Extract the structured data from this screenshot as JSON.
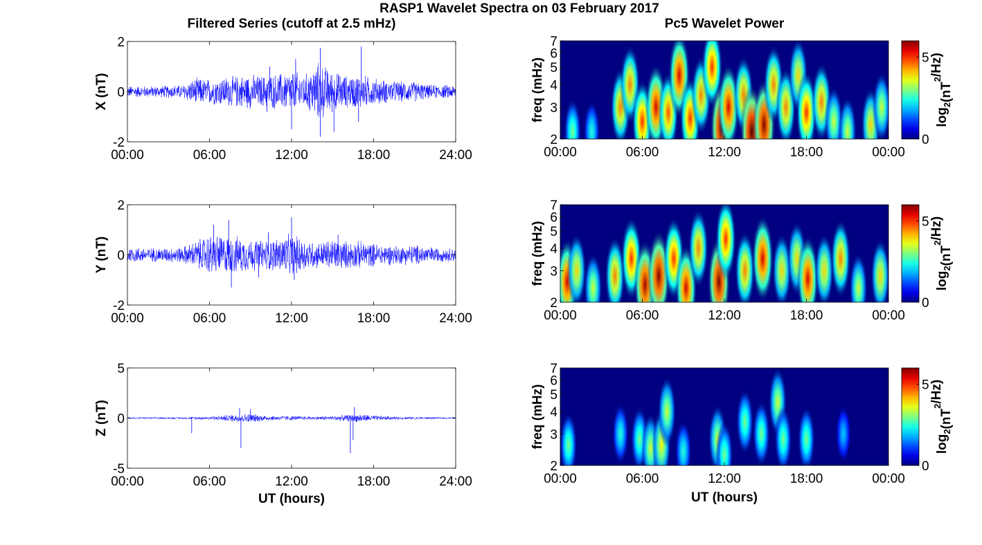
{
  "figure": {
    "title": "RASP1 Wavelet Spectra on 03 February 2017"
  },
  "chart_data": [
    {
      "type": "line",
      "title": "Filtered Series (cutoff at 2.5 mHz)",
      "ylabel": "X (nT)",
      "xlabel": "",
      "xlim": [
        0,
        24
      ],
      "ylim": [
        -2,
        2
      ],
      "x_ticks": [
        "00:00",
        "06:00",
        "12:00",
        "18:00",
        "24:00"
      ],
      "y_ticks": [
        "-2",
        "0",
        "2"
      ],
      "line_color": "#0000ff",
      "envelope": {
        "x": [
          0,
          2,
          4,
          5,
          6,
          7,
          8,
          9,
          10,
          11,
          12,
          13,
          14,
          15,
          16,
          17,
          18,
          19,
          20,
          21,
          22,
          23,
          24
        ],
        "amplitude": [
          0.25,
          0.25,
          0.3,
          0.6,
          0.55,
          0.65,
          0.7,
          0.75,
          0.7,
          0.8,
          0.9,
          0.75,
          1.3,
          0.9,
          0.7,
          0.75,
          0.6,
          0.5,
          0.45,
          0.45,
          0.3,
          0.3,
          0.3
        ]
      },
      "spikes": [
        {
          "x": 12.3,
          "y": 1.3
        },
        {
          "x": 12.0,
          "y": -1.5
        },
        {
          "x": 14.1,
          "y": 1.75
        },
        {
          "x": 14.1,
          "y": -1.8
        },
        {
          "x": 15.1,
          "y": -1.6
        },
        {
          "x": 17.1,
          "y": 1.8
        },
        {
          "x": 16.9,
          "y": -1.2
        },
        {
          "x": 10.4,
          "y": 1.0
        },
        {
          "x": 10.2,
          "y": -0.8
        }
      ]
    },
    {
      "type": "line",
      "ylabel": "Y (nT)",
      "xlabel": "",
      "xlim": [
        0,
        24
      ],
      "ylim": [
        -2,
        2
      ],
      "x_ticks": [
        "00:00",
        "06:00",
        "12:00",
        "18:00",
        "24:00"
      ],
      "y_ticks": [
        "-2",
        "0",
        "2"
      ],
      "line_color": "#0000ff",
      "envelope": {
        "x": [
          0,
          2,
          4,
          5,
          6,
          7,
          8,
          9,
          10,
          11,
          12,
          13,
          14,
          15,
          16,
          17,
          18,
          19,
          20,
          21,
          22,
          23,
          24
        ],
        "amplitude": [
          0.35,
          0.3,
          0.35,
          0.6,
          0.9,
          0.85,
          0.8,
          0.7,
          0.65,
          0.75,
          0.9,
          0.7,
          0.55,
          0.7,
          0.6,
          0.6,
          0.5,
          0.45,
          0.4,
          0.45,
          0.35,
          0.3,
          0.3
        ]
      },
      "spikes": [
        {
          "x": 6.3,
          "y": 1.2
        },
        {
          "x": 7.4,
          "y": 1.4
        },
        {
          "x": 7.6,
          "y": -1.3
        },
        {
          "x": 12.0,
          "y": 1.5
        },
        {
          "x": 12.2,
          "y": -1.0
        },
        {
          "x": 10.3,
          "y": 0.9
        },
        {
          "x": 9.6,
          "y": -0.9
        },
        {
          "x": 15.4,
          "y": 0.8
        }
      ]
    },
    {
      "type": "line",
      "ylabel": "Z (nT)",
      "xlabel": "UT (hours)",
      "xlim": [
        0,
        24
      ],
      "ylim": [
        -5,
        5
      ],
      "x_ticks": [
        "00:00",
        "06:00",
        "12:00",
        "18:00",
        "24:00"
      ],
      "y_ticks": [
        "-5",
        "0",
        "5"
      ],
      "line_color": "#0000ff",
      "envelope": {
        "x": [
          0,
          2,
          4,
          5,
          6,
          7,
          8,
          9,
          10,
          11,
          12,
          13,
          14,
          15,
          16,
          17,
          18,
          19,
          20,
          21,
          22,
          23,
          24
        ],
        "amplitude": [
          0.1,
          0.1,
          0.12,
          0.15,
          0.2,
          0.3,
          0.45,
          0.5,
          0.3,
          0.25,
          0.25,
          0.2,
          0.2,
          0.25,
          0.35,
          0.45,
          0.3,
          0.2,
          0.15,
          0.15,
          0.12,
          0.1,
          0.1
        ]
      },
      "spikes": [
        {
          "x": 4.7,
          "y": -1.5
        },
        {
          "x": 8.3,
          "y": -3.0
        },
        {
          "x": 8.2,
          "y": 1.0
        },
        {
          "x": 16.3,
          "y": -3.5
        },
        {
          "x": 16.6,
          "y": 1.1
        },
        {
          "x": 16.5,
          "y": -2.2
        },
        {
          "x": 9.0,
          "y": 0.9
        }
      ]
    },
    {
      "type": "heatmap",
      "title": "Pc5 Wavelet Power",
      "ylabel": "freq (mHz)",
      "xlabel": "",
      "xlim": [
        0,
        24
      ],
      "ylim": [
        2,
        7
      ],
      "y_scale": "log",
      "x_ticks": [
        "00:00",
        "06:00",
        "12:00",
        "18:00",
        "00:00"
      ],
      "y_ticks": [
        "2",
        "3",
        "4",
        "5",
        "6",
        "7"
      ],
      "colormap": "jet",
      "colorbar": {
        "ticks": [
          "0",
          "5"
        ],
        "range": [
          0,
          6
        ],
        "label_main": "log",
        "label_sub": "2",
        "label_paren": "(nT",
        "label_sup": "2",
        "label_end": "/Hz)"
      },
      "blobs": [
        {
          "t": 0.9,
          "f": 2.2,
          "p": 3.0
        },
        {
          "t": 2.3,
          "f": 2.2,
          "p": 2.5
        },
        {
          "t": 4.4,
          "f": 3.0,
          "p": 4.5
        },
        {
          "t": 5.1,
          "f": 4.0,
          "p": 4.5
        },
        {
          "t": 6.0,
          "f": 2.5,
          "p": 5.0
        },
        {
          "t": 7.0,
          "f": 3.0,
          "p": 5.5
        },
        {
          "t": 7.9,
          "f": 2.8,
          "p": 4.8
        },
        {
          "t": 8.7,
          "f": 4.5,
          "p": 5.5
        },
        {
          "t": 9.5,
          "f": 2.6,
          "p": 5.0
        },
        {
          "t": 10.3,
          "f": 3.5,
          "p": 4.5
        },
        {
          "t": 11.1,
          "f": 5.0,
          "p": 5.0
        },
        {
          "t": 11.8,
          "f": 2.3,
          "p": 6.2
        },
        {
          "t": 12.3,
          "f": 3.0,
          "p": 5.5
        },
        {
          "t": 13.4,
          "f": 3.5,
          "p": 4.5
        },
        {
          "t": 14.0,
          "f": 2.2,
          "p": 6.3
        },
        {
          "t": 14.9,
          "f": 2.4,
          "p": 6.0
        },
        {
          "t": 15.6,
          "f": 4.0,
          "p": 4.5
        },
        {
          "t": 16.5,
          "f": 3.0,
          "p": 4.5
        },
        {
          "t": 17.4,
          "f": 4.5,
          "p": 4.0
        },
        {
          "t": 18.0,
          "f": 2.8,
          "p": 5.0
        },
        {
          "t": 19.1,
          "f": 3.2,
          "p": 4.5
        },
        {
          "t": 20.0,
          "f": 2.5,
          "p": 3.5
        },
        {
          "t": 21.0,
          "f": 2.2,
          "p": 3.5
        },
        {
          "t": 22.7,
          "f": 2.4,
          "p": 4.0
        },
        {
          "t": 23.5,
          "f": 3.0,
          "p": 3.5
        }
      ]
    },
    {
      "type": "heatmap",
      "ylabel": "freq (mHz)",
      "xlabel": "",
      "xlim": [
        0,
        24
      ],
      "ylim": [
        2,
        7
      ],
      "y_scale": "log",
      "x_ticks": [
        "00:00",
        "06:00",
        "12:00",
        "18:00",
        "00:00"
      ],
      "y_ticks": [
        "2",
        "3",
        "4",
        "5",
        "6",
        "7"
      ],
      "colormap": "jet",
      "colorbar": {
        "ticks": [
          "0",
          "5"
        ],
        "range": [
          0,
          6
        ],
        "label_main": "log",
        "label_sub": "2",
        "label_paren": "(nT",
        "label_sup": "2",
        "label_end": "/Hz)"
      },
      "blobs": [
        {
          "t": 0.5,
          "f": 2.6,
          "p": 5.5
        },
        {
          "t": 1.2,
          "f": 3.0,
          "p": 4.0
        },
        {
          "t": 2.4,
          "f": 2.4,
          "p": 3.5
        },
        {
          "t": 4.0,
          "f": 2.8,
          "p": 4.5
        },
        {
          "t": 5.2,
          "f": 3.5,
          "p": 5.0
        },
        {
          "t": 6.2,
          "f": 2.5,
          "p": 5.8
        },
        {
          "t": 7.2,
          "f": 2.8,
          "p": 6.0
        },
        {
          "t": 8.3,
          "f": 3.5,
          "p": 5.0
        },
        {
          "t": 9.2,
          "f": 2.4,
          "p": 5.5
        },
        {
          "t": 10.1,
          "f": 4.0,
          "p": 4.5
        },
        {
          "t": 11.6,
          "f": 2.6,
          "p": 6.0
        },
        {
          "t": 12.1,
          "f": 4.5,
          "p": 5.0
        },
        {
          "t": 13.5,
          "f": 3.0,
          "p": 4.5
        },
        {
          "t": 14.8,
          "f": 3.5,
          "p": 5.5
        },
        {
          "t": 16.2,
          "f": 3.0,
          "p": 4.0
        },
        {
          "t": 17.3,
          "f": 3.5,
          "p": 4.0
        },
        {
          "t": 18.1,
          "f": 2.7,
          "p": 5.5
        },
        {
          "t": 19.3,
          "f": 3.0,
          "p": 4.0
        },
        {
          "t": 20.5,
          "f": 3.5,
          "p": 4.5
        },
        {
          "t": 21.8,
          "f": 2.4,
          "p": 3.5
        },
        {
          "t": 23.4,
          "f": 2.8,
          "p": 4.0
        }
      ]
    },
    {
      "type": "heatmap",
      "ylabel": "freq (mHz)",
      "xlabel": "UT (hours)",
      "xlim": [
        0,
        24
      ],
      "ylim": [
        2,
        7
      ],
      "y_scale": "log",
      "x_ticks": [
        "00:00",
        "06:00",
        "12:00",
        "18:00",
        "00:00"
      ],
      "y_ticks": [
        "2",
        "3",
        "4",
        "5",
        "6",
        "7"
      ],
      "colormap": "jet",
      "colorbar": {
        "ticks": [
          "0",
          "5"
        ],
        "range": [
          0,
          6
        ],
        "label_main": "log",
        "label_sub": "2",
        "label_paren": "(nT",
        "label_sup": "2",
        "label_end": "/Hz)"
      },
      "blobs": [
        {
          "t": 0.6,
          "f": 2.6,
          "p": 3.0
        },
        {
          "t": 4.4,
          "f": 3.0,
          "p": 2.5
        },
        {
          "t": 5.8,
          "f": 2.8,
          "p": 3.0
        },
        {
          "t": 6.6,
          "f": 2.5,
          "p": 3.5
        },
        {
          "t": 7.4,
          "f": 2.6,
          "p": 3.8
        },
        {
          "t": 7.8,
          "f": 4.0,
          "p": 3.5
        },
        {
          "t": 9.0,
          "f": 2.4,
          "p": 2.5
        },
        {
          "t": 11.5,
          "f": 2.8,
          "p": 3.5
        },
        {
          "t": 12.0,
          "f": 2.3,
          "p": 3.0
        },
        {
          "t": 13.5,
          "f": 3.5,
          "p": 3.0
        },
        {
          "t": 14.7,
          "f": 3.0,
          "p": 3.0
        },
        {
          "t": 15.9,
          "f": 4.5,
          "p": 3.5
        },
        {
          "t": 16.3,
          "f": 2.8,
          "p": 3.0
        },
        {
          "t": 18.0,
          "f": 2.8,
          "p": 3.0
        },
        {
          "t": 20.7,
          "f": 3.0,
          "p": 2.0
        }
      ]
    }
  ]
}
